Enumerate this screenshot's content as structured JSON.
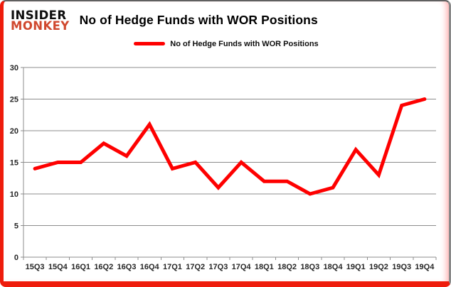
{
  "header": {
    "logo_line1": "INSIDER",
    "logo_line2": "MONKEY",
    "title": "No of Hedge Funds with WOR Positions"
  },
  "legend": {
    "label": "No of Hedge Funds with WOR Positions"
  },
  "colors": {
    "series_red": "#fe0000",
    "logo_red": "#d0482e",
    "frame_red": "#ee1c0c",
    "grid_gray": "#8c8c8c",
    "axis_text": "#262626"
  },
  "chart_data": {
    "type": "line",
    "title": "No of Hedge Funds with WOR Positions",
    "categories": [
      "15Q3",
      "15Q4",
      "16Q1",
      "16Q2",
      "16Q3",
      "16Q4",
      "17Q1",
      "17Q2",
      "17Q3",
      "17Q4",
      "18Q1",
      "18Q2",
      "18Q3",
      "18Q4",
      "19Q1",
      "19Q2",
      "19Q3",
      "19Q4"
    ],
    "series": [
      {
        "name": "No of Hedge Funds with WOR Positions",
        "color": "#fe0000",
        "values": [
          14,
          15,
          15,
          18,
          16,
          21,
          14,
          15,
          11,
          15,
          12,
          12,
          10,
          11,
          17,
          13,
          24,
          25
        ]
      }
    ],
    "ylim": [
      0,
      30
    ],
    "ytick_step": 5,
    "yticks": [
      0,
      5,
      10,
      15,
      20,
      25,
      30
    ],
    "grid": true,
    "legend_position": "top",
    "xlabel": "",
    "ylabel": ""
  }
}
